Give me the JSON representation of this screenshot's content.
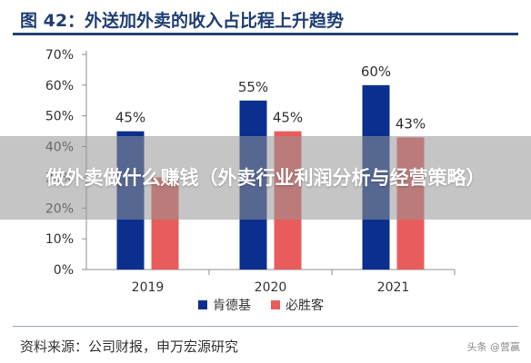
{
  "title": "图 42：外送加外卖的收入占比程上升趋势",
  "source": "资料来源：公司财报，申万宏源研究",
  "watermark": "头条 @营赢",
  "overlay": {
    "text": "做外卖做什么赚钱（外卖行业利润分析与经营策略）"
  },
  "chart_data": {
    "type": "bar",
    "categories": [
      "2019",
      "2020",
      "2021"
    ],
    "series": [
      {
        "name": "肯德基",
        "values": [
          45,
          55,
          60
        ],
        "labels": [
          "45%",
          "55%",
          "60%"
        ],
        "color": "#0b2f8f"
      },
      {
        "name": "必胜客",
        "values": [
          30,
          45,
          43
        ],
        "labels": [
          "",
          "45%",
          "43%"
        ],
        "color": "#e85c5c"
      }
    ],
    "ylim": [
      0,
      70
    ],
    "yticks": [
      0,
      10,
      20,
      30,
      40,
      50,
      60,
      70
    ],
    "ytick_labels": [
      "0%",
      "10%",
      "20%",
      "30%",
      "40%",
      "50%",
      "60%",
      "70%"
    ],
    "legend_position": "bottom",
    "grid": false
  }
}
